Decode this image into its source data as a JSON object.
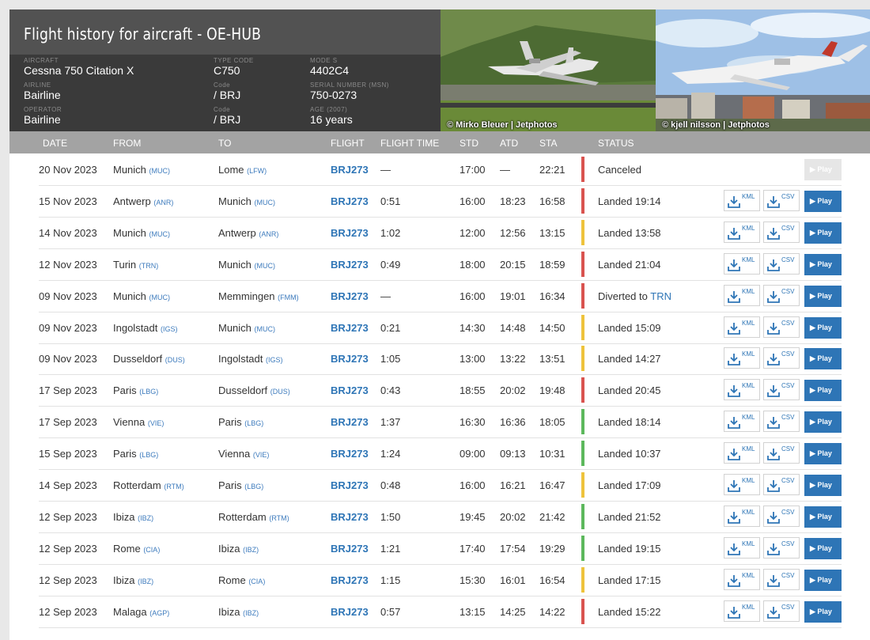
{
  "header": {
    "title": "Flight history for aircraft - OE-HUB",
    "aircraft_label": "AIRCRAFT",
    "aircraft": "Cessna 750 Citation X",
    "type_code_label": "TYPE CODE",
    "type_code": "C750",
    "mode_s_label": "MODE S",
    "mode_s": "4402C4",
    "airline_label": "AIRLINE",
    "airline": "Bairline",
    "airline_code_label": "Code",
    "airline_code": "/ BRJ",
    "serial_label": "SERIAL NUMBER (MSN)",
    "serial": "750-0273",
    "operator_label": "OPERATOR",
    "operator": "Bairline",
    "operator_code_label": "Code",
    "operator_code": "/ BRJ",
    "age_label": "AGE (2007)",
    "age": "16 years"
  },
  "photos": [
    {
      "credit": "© Mirko Bleuer | Jetphotos"
    },
    {
      "credit": "© kjell nilsson | Jetphotos"
    }
  ],
  "columns": {
    "date": "DATE",
    "from": "FROM",
    "to": "TO",
    "flight": "FLIGHT",
    "flight_time": "FLIGHT TIME",
    "std": "STD",
    "atd": "ATD",
    "sta": "STA",
    "status": "STATUS"
  },
  "buttons": {
    "kml": "KML",
    "csv": "CSV",
    "play": "▶ Play"
  },
  "colors": {
    "red": "#d9534f",
    "yellow": "#eec33c",
    "green": "#5cb85c",
    "accent": "#2e75b6"
  },
  "rows": [
    {
      "date": "20 Nov 2023",
      "from": "Munich",
      "from_code": "(MUC)",
      "to": "Lome",
      "to_code": "(LFW)",
      "flight": "BRJ273",
      "time": "—",
      "std": "17:00",
      "atd": "—",
      "sta": "22:21",
      "status": "Canceled",
      "status_link": "",
      "color": "red",
      "actions": false
    },
    {
      "date": "15 Nov 2023",
      "from": "Antwerp",
      "from_code": "(ANR)",
      "to": "Munich",
      "to_code": "(MUC)",
      "flight": "BRJ273",
      "time": "0:51",
      "std": "16:00",
      "atd": "18:23",
      "sta": "16:58",
      "status": "Landed 19:14",
      "status_link": "",
      "color": "red",
      "actions": true
    },
    {
      "date": "14 Nov 2023",
      "from": "Munich",
      "from_code": "(MUC)",
      "to": "Antwerp",
      "to_code": "(ANR)",
      "flight": "BRJ273",
      "time": "1:02",
      "std": "12:00",
      "atd": "12:56",
      "sta": "13:15",
      "status": "Landed 13:58",
      "status_link": "",
      "color": "yellow",
      "actions": true
    },
    {
      "date": "12 Nov 2023",
      "from": "Turin",
      "from_code": "(TRN)",
      "to": "Munich",
      "to_code": "(MUC)",
      "flight": "BRJ273",
      "time": "0:49",
      "std": "18:00",
      "atd": "20:15",
      "sta": "18:59",
      "status": "Landed 21:04",
      "status_link": "",
      "color": "red",
      "actions": true
    },
    {
      "date": "09 Nov 2023",
      "from": "Munich",
      "from_code": "(MUC)",
      "to": "Memmingen",
      "to_code": "(FMM)",
      "flight": "BRJ273",
      "time": "—",
      "std": "16:00",
      "atd": "19:01",
      "sta": "16:34",
      "status": "Diverted to",
      "status_link": "TRN",
      "color": "red",
      "actions": true
    },
    {
      "date": "09 Nov 2023",
      "from": "Ingolstadt",
      "from_code": "(IGS)",
      "to": "Munich",
      "to_code": "(MUC)",
      "flight": "BRJ273",
      "time": "0:21",
      "std": "14:30",
      "atd": "14:48",
      "sta": "14:50",
      "status": "Landed 15:09",
      "status_link": "",
      "color": "yellow",
      "actions": true
    },
    {
      "date": "09 Nov 2023",
      "from": "Dusseldorf",
      "from_code": "(DUS)",
      "to": "Ingolstadt",
      "to_code": "(IGS)",
      "flight": "BRJ273",
      "time": "1:05",
      "std": "13:00",
      "atd": "13:22",
      "sta": "13:51",
      "status": "Landed 14:27",
      "status_link": "",
      "color": "yellow",
      "actions": true
    },
    {
      "date": "17 Sep 2023",
      "from": "Paris",
      "from_code": "(LBG)",
      "to": "Dusseldorf",
      "to_code": "(DUS)",
      "flight": "BRJ273",
      "time": "0:43",
      "std": "18:55",
      "atd": "20:02",
      "sta": "19:48",
      "status": "Landed 20:45",
      "status_link": "",
      "color": "red",
      "actions": true
    },
    {
      "date": "17 Sep 2023",
      "from": "Vienna",
      "from_code": "(VIE)",
      "to": "Paris",
      "to_code": "(LBG)",
      "flight": "BRJ273",
      "time": "1:37",
      "std": "16:30",
      "atd": "16:36",
      "sta": "18:05",
      "status": "Landed 18:14",
      "status_link": "",
      "color": "green",
      "actions": true
    },
    {
      "date": "15 Sep 2023",
      "from": "Paris",
      "from_code": "(LBG)",
      "to": "Vienna",
      "to_code": "(VIE)",
      "flight": "BRJ273",
      "time": "1:24",
      "std": "09:00",
      "atd": "09:13",
      "sta": "10:31",
      "status": "Landed 10:37",
      "status_link": "",
      "color": "green",
      "actions": true
    },
    {
      "date": "14 Sep 2023",
      "from": "Rotterdam",
      "from_code": "(RTM)",
      "to": "Paris",
      "to_code": "(LBG)",
      "flight": "BRJ273",
      "time": "0:48",
      "std": "16:00",
      "atd": "16:21",
      "sta": "16:47",
      "status": "Landed 17:09",
      "status_link": "",
      "color": "yellow",
      "actions": true
    },
    {
      "date": "12 Sep 2023",
      "from": "Ibiza",
      "from_code": "(IBZ)",
      "to": "Rotterdam",
      "to_code": "(RTM)",
      "flight": "BRJ273",
      "time": "1:50",
      "std": "19:45",
      "atd": "20:02",
      "sta": "21:42",
      "status": "Landed 21:52",
      "status_link": "",
      "color": "green",
      "actions": true
    },
    {
      "date": "12 Sep 2023",
      "from": "Rome",
      "from_code": "(CIA)",
      "to": "Ibiza",
      "to_code": "(IBZ)",
      "flight": "BRJ273",
      "time": "1:21",
      "std": "17:40",
      "atd": "17:54",
      "sta": "19:29",
      "status": "Landed 19:15",
      "status_link": "",
      "color": "green",
      "actions": true
    },
    {
      "date": "12 Sep 2023",
      "from": "Ibiza",
      "from_code": "(IBZ)",
      "to": "Rome",
      "to_code": "(CIA)",
      "flight": "BRJ273",
      "time": "1:15",
      "std": "15:30",
      "atd": "16:01",
      "sta": "16:54",
      "status": "Landed 17:15",
      "status_link": "",
      "color": "yellow",
      "actions": true
    },
    {
      "date": "12 Sep 2023",
      "from": "Malaga",
      "from_code": "(AGP)",
      "to": "Ibiza",
      "to_code": "(IBZ)",
      "flight": "BRJ273",
      "time": "0:57",
      "std": "13:15",
      "atd": "14:25",
      "sta": "14:22",
      "status": "Landed 15:22",
      "status_link": "",
      "color": "red",
      "actions": true
    }
  ]
}
